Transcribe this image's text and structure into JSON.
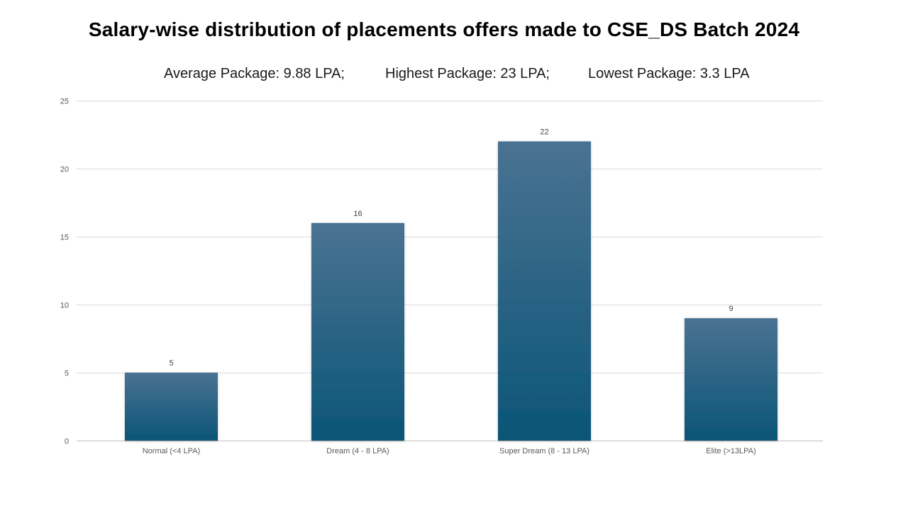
{
  "title": "Salary-wise distribution of placements offers made to CSE_DS Batch 2024",
  "summary": {
    "average": "Average Package: 9.88 LPA;",
    "highest": "Highest Package: 23 LPA;",
    "lowest": "Lowest Package: 3.3 LPA"
  },
  "colors": {
    "bar_top": "#4a7292",
    "bar_bottom": "#0b5577",
    "grid": "#d9d9d9",
    "axis": "#bfbfbf"
  },
  "chart_data": {
    "type": "bar",
    "title": "Salary-wise distribution of placements offers made to CSE_DS Batch 2024",
    "categories": [
      "Normal (<4 LPA)",
      "Dream (4 - 8 LPA)",
      "Super Dream (8 - 13 LPA)",
      "Elite (>13LPA)"
    ],
    "values": [
      5,
      16,
      22,
      9
    ],
    "ylim": [
      0,
      25
    ],
    "yticks": [
      0,
      5,
      10,
      15,
      20,
      25
    ],
    "grid": true,
    "data_labels": true
  }
}
